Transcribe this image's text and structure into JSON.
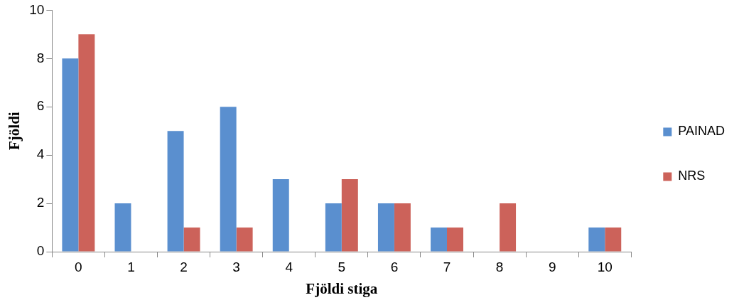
{
  "chart_data": {
    "type": "bar",
    "xlabel": "Fjöldi stiga",
    "ylabel": "Fjöldi",
    "categories": [
      "0",
      "1",
      "2",
      "3",
      "4",
      "5",
      "6",
      "7",
      "8",
      "9",
      "10"
    ],
    "series": [
      {
        "name": "PAINAD",
        "color": "#5a8fcf",
        "values": [
          8,
          2,
          5,
          6,
          3,
          2,
          2,
          1,
          0,
          0,
          1
        ]
      },
      {
        "name": "NRS",
        "color": "#cc625a",
        "values": [
          9,
          0,
          1,
          1,
          0,
          3,
          2,
          1,
          2,
          0,
          1
        ]
      }
    ],
    "ylim": [
      0,
      10
    ],
    "yticks": [
      0,
      2,
      4,
      6,
      8,
      10
    ],
    "grid": false,
    "legend": "right"
  }
}
